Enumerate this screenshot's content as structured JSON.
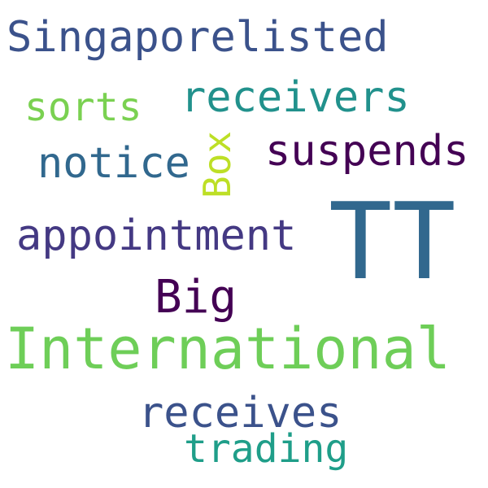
{
  "words": [
    {
      "text": "Singaporelisted",
      "color": "#3b528b"
    },
    {
      "text": "sorts",
      "color": "#7ad151"
    },
    {
      "text": "receivers",
      "color": "#21918c"
    },
    {
      "text": "notice",
      "color": "#31688e"
    },
    {
      "text": "Box",
      "color": "#bddf26"
    },
    {
      "text": "suspends",
      "color": "#440154"
    },
    {
      "text": "TT",
      "color": "#31688e"
    },
    {
      "text": "appointment",
      "color": "#443983"
    },
    {
      "text": "Big",
      "color": "#440154"
    },
    {
      "text": "International",
      "color": "#6ece58"
    },
    {
      "text": "receives",
      "color": "#3b528b"
    },
    {
      "text": "trading",
      "color": "#1f9e89"
    }
  ]
}
